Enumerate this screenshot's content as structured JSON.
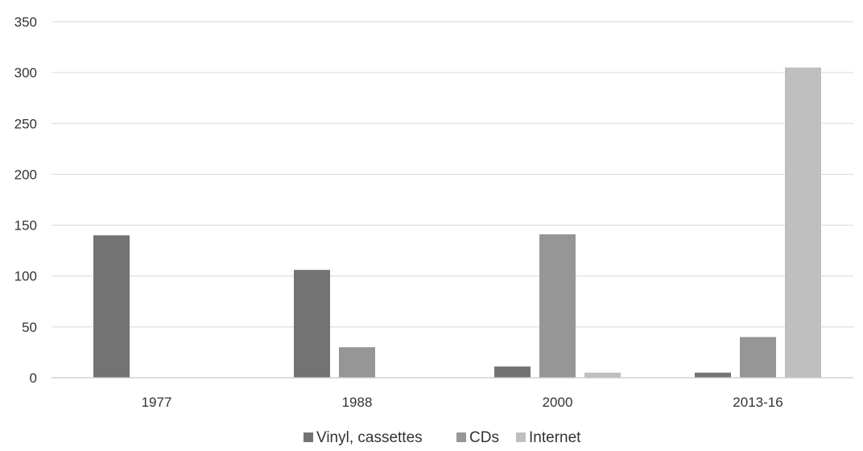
{
  "chart_data": {
    "type": "bar",
    "categories": [
      "1977",
      "1988",
      "2000",
      "2013-16"
    ],
    "series": [
      {
        "name": "Vinyl, cassettes",
        "values": [
          140,
          106,
          11,
          5
        ],
        "color": "#737373"
      },
      {
        "name": "CDs",
        "values": [
          0,
          30,
          141,
          40
        ],
        "color": "#969696"
      },
      {
        "name": "Internet",
        "values": [
          0,
          0,
          5,
          305
        ],
        "color": "#bfbfbf"
      }
    ],
    "yticks": [
      0,
      50,
      100,
      150,
      200,
      250,
      300,
      350
    ],
    "ylim": [
      0,
      350
    ],
    "grid": true,
    "legend_position": "bottom"
  }
}
